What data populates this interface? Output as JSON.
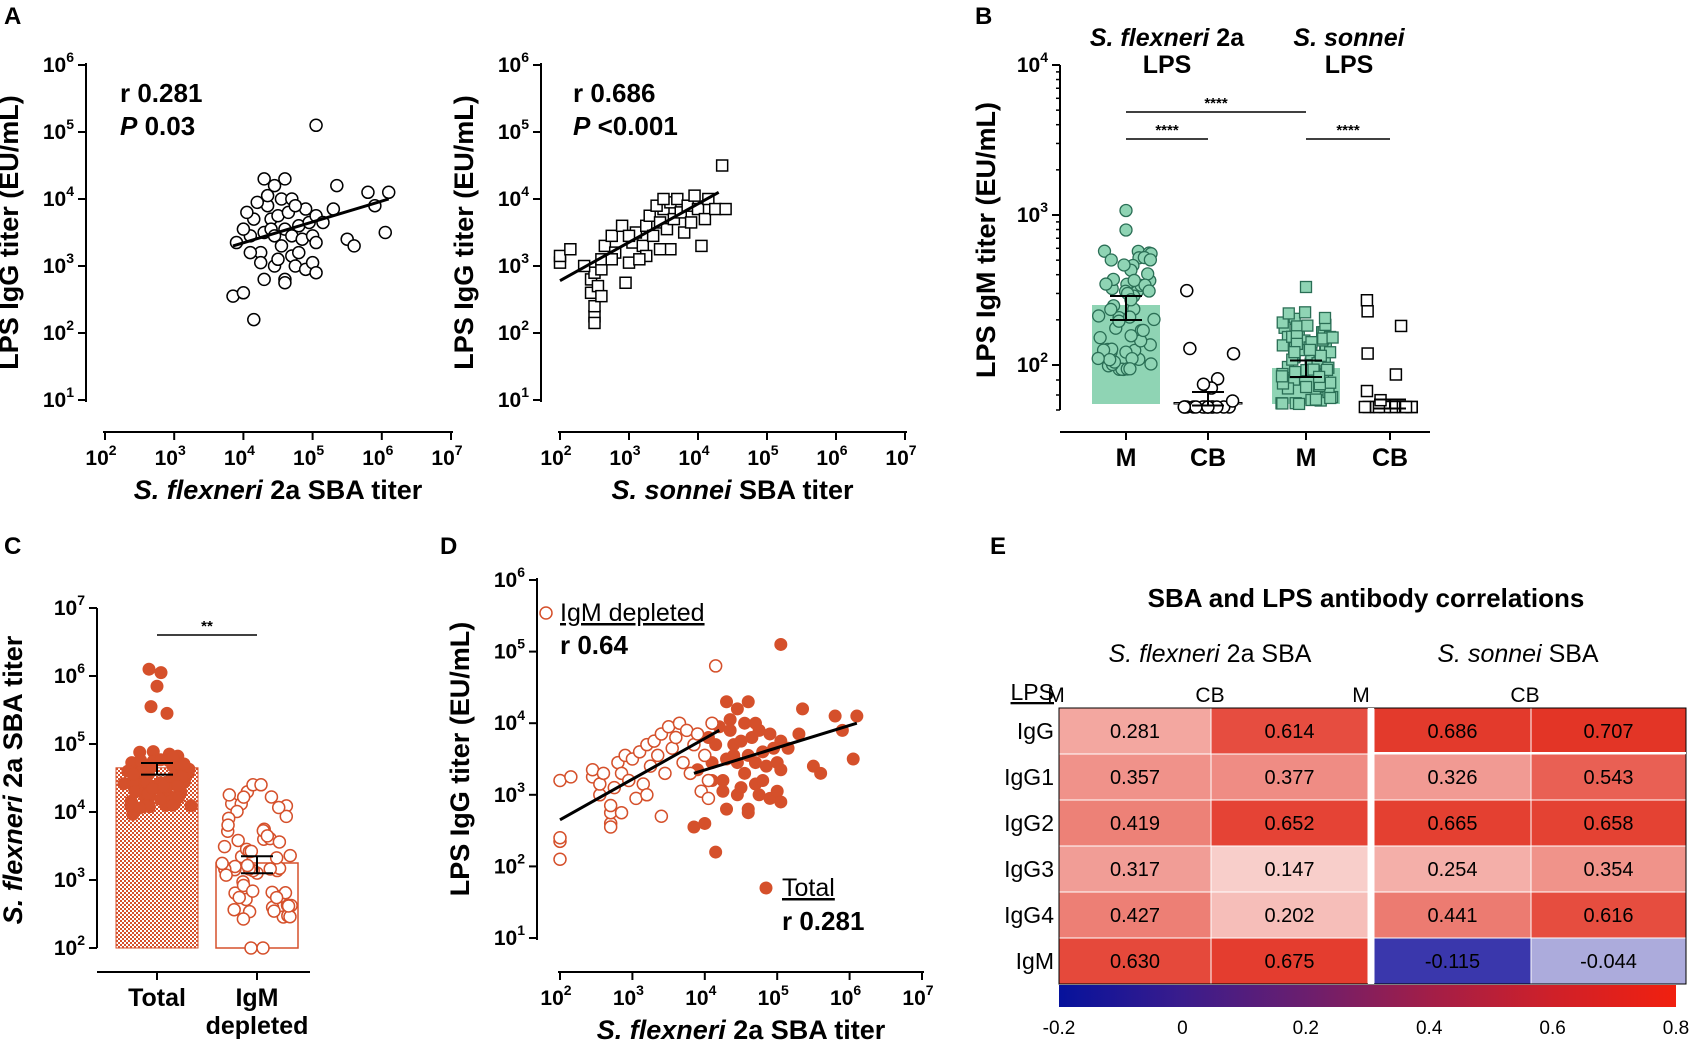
{
  "panels": {
    "a": "A",
    "b": "B",
    "c": "C",
    "d": "D",
    "e": "E"
  },
  "colors": {
    "green": "#8fd4b4",
    "green_edge": "#2a6e55",
    "orange": "#d5502b",
    "neg": "#1e1aa0",
    "pos": "#e12a1a"
  },
  "chart_data": [
    {
      "id": "A1",
      "type": "scatter",
      "xscale": "log",
      "yscale": "log",
      "xlim": [
        2,
        7
      ],
      "ylim": [
        1,
        6
      ],
      "x_ticks": [
        "2",
        "3",
        "4",
        "5",
        "6",
        "7"
      ],
      "y_ticks": [
        "1",
        "2",
        "3",
        "4",
        "5",
        "6"
      ],
      "tick_base": "10",
      "xlabel_italic": "S. flexneri",
      "xlabel_rest": " 2a SBA titer",
      "ylabel": "LPS IgG titer (EU/mL)",
      "r_label": "r 0.281",
      "p_italic": "P",
      "p_value": " 0.03",
      "marker": "open-circle",
      "fit": {
        "log_x": [
          3.85,
          6.1
        ],
        "log_y": [
          3.3,
          4.0
        ]
      },
      "points_log": [
        [
          3.85,
          2.55
        ],
        [
          4.15,
          2.2
        ],
        [
          4.0,
          2.6
        ],
        [
          4.3,
          2.8
        ],
        [
          4.25,
          3.2
        ],
        [
          4.45,
          3.0
        ],
        [
          3.9,
          3.35
        ],
        [
          4.1,
          3.45
        ],
        [
          4.3,
          3.5
        ],
        [
          4.55,
          3.3
        ],
        [
          4.7,
          3.15
        ],
        [
          4.6,
          3.55
        ],
        [
          4.4,
          3.7
        ],
        [
          4.15,
          3.7
        ],
        [
          4.0,
          3.55
        ],
        [
          4.35,
          3.9
        ],
        [
          4.5,
          3.75
        ],
        [
          4.65,
          3.8
        ],
        [
          4.8,
          3.6
        ],
        [
          4.2,
          3.95
        ],
        [
          4.35,
          4.05
        ],
        [
          4.55,
          4.0
        ],
        [
          4.7,
          4.0
        ],
        [
          4.9,
          3.85
        ],
        [
          4.45,
          4.2
        ],
        [
          4.6,
          4.3
        ],
        [
          4.3,
          4.3
        ],
        [
          4.7,
          3.45
        ],
        [
          4.85,
          3.4
        ],
        [
          5.0,
          3.45
        ],
        [
          4.95,
          3.65
        ],
        [
          5.05,
          3.75
        ],
        [
          4.8,
          3.2
        ],
        [
          4.25,
          3.05
        ],
        [
          4.5,
          3.1
        ],
        [
          4.1,
          3.2
        ],
        [
          4.6,
          2.8
        ],
        [
          4.75,
          3.0
        ],
        [
          4.9,
          2.95
        ],
        [
          5.0,
          3.05
        ],
        [
          5.05,
          3.35
        ],
        [
          5.15,
          3.65
        ],
        [
          5.3,
          3.85
        ],
        [
          5.35,
          4.2
        ],
        [
          5.5,
          3.4
        ],
        [
          5.6,
          3.3
        ],
        [
          5.8,
          4.1
        ],
        [
          5.9,
          3.9
        ],
        [
          6.1,
          4.1
        ],
        [
          6.05,
          3.5
        ],
        [
          5.05,
          5.1
        ],
        [
          4.6,
          2.75
        ],
        [
          5.05,
          2.9
        ],
        [
          4.4,
          3.55
        ],
        [
          4.75,
          3.9
        ],
        [
          4.05,
          3.8
        ],
        [
          4.45,
          3.45
        ]
      ]
    },
    {
      "id": "A2",
      "type": "scatter",
      "xscale": "log",
      "yscale": "log",
      "xlim": [
        2,
        7
      ],
      "ylim": [
        1,
        6
      ],
      "x_ticks": [
        "2",
        "3",
        "4",
        "5",
        "6",
        "7"
      ],
      "y_ticks": [
        "1",
        "2",
        "3",
        "4",
        "5",
        "6"
      ],
      "tick_base": "10",
      "xlabel_italic": "S. sonnei",
      "xlabel_rest": " SBA titer",
      "ylabel": "LPS IgG titer (EU/mL)",
      "r_label": "r 0.686",
      "p_italic": "P",
      "p_value": " <0.001",
      "marker": "open-square",
      "fit": {
        "log_x": [
          2.0,
          4.3
        ],
        "log_y": [
          2.78,
          4.1
        ]
      },
      "points_log": [
        [
          2.0,
          3.05
        ],
        [
          2.0,
          3.15
        ],
        [
          2.15,
          3.25
        ],
        [
          2.45,
          2.8
        ],
        [
          2.45,
          2.6
        ],
        [
          2.5,
          2.25
        ],
        [
          2.5,
          2.15
        ],
        [
          2.5,
          2.4
        ],
        [
          2.55,
          2.7
        ],
        [
          2.5,
          2.9
        ],
        [
          2.6,
          2.95
        ],
        [
          2.6,
          3.1
        ],
        [
          2.65,
          3.3
        ],
        [
          2.75,
          3.45
        ],
        [
          2.8,
          3.2
        ],
        [
          2.9,
          3.6
        ],
        [
          2.95,
          2.75
        ],
        [
          3.0,
          3.05
        ],
        [
          3.05,
          3.35
        ],
        [
          3.1,
          3.5
        ],
        [
          3.2,
          3.3
        ],
        [
          3.25,
          3.6
        ],
        [
          3.3,
          3.75
        ],
        [
          3.35,
          3.45
        ],
        [
          3.45,
          3.65
        ],
        [
          3.5,
          3.85
        ],
        [
          3.55,
          3.55
        ],
        [
          3.6,
          3.95
        ],
        [
          3.65,
          3.7
        ],
        [
          3.7,
          4.0
        ],
        [
          3.75,
          3.8
        ],
        [
          3.8,
          3.5
        ],
        [
          3.85,
          3.9
        ],
        [
          3.9,
          3.65
        ],
        [
          3.95,
          4.05
        ],
        [
          4.0,
          3.85
        ],
        [
          4.05,
          3.3
        ],
        [
          4.1,
          3.7
        ],
        [
          4.15,
          4.0
        ],
        [
          4.25,
          3.85
        ],
        [
          3.4,
          3.9
        ],
        [
          3.5,
          4.0
        ],
        [
          3.25,
          3.15
        ],
        [
          3.15,
          3.1
        ],
        [
          3.6,
          3.25
        ],
        [
          4.35,
          4.5
        ],
        [
          4.4,
          3.85
        ],
        [
          2.35,
          3.0
        ],
        [
          2.6,
          2.55
        ],
        [
          2.75,
          3.1
        ],
        [
          3.0,
          3.45
        ],
        [
          3.45,
          3.25
        ]
      ]
    },
    {
      "id": "B",
      "type": "bar+scatter",
      "yscale": "log",
      "ylim": [
        1.7,
        4.0
      ],
      "y_ticks": [
        "2",
        "3",
        "4"
      ],
      "tick_base": "10",
      "ylabel": "LPS IgM titer (EU/mL)",
      "groups": [
        {
          "title_italic": "S. flexneri",
          "title_rest": " 2a",
          "title_line2": "LPS"
        },
        {
          "title_italic": "S. sonnei",
          "title_rest": "",
          "title_line2": "LPS"
        }
      ],
      "categories": [
        "M",
        "CB",
        "M",
        "CB"
      ],
      "bar_log_values": [
        2.4,
        1.75,
        1.98,
        1.72
      ],
      "error_log": [
        [
          2.3,
          2.46
        ],
        [
          1.73,
          1.82
        ],
        [
          1.92,
          2.03
        ],
        [
          1.71,
          1.77
        ]
      ],
      "markers": [
        "green-circle",
        "open-circle",
        "green-square",
        "open-square"
      ],
      "significance": [
        {
          "label": "****",
          "from": 0,
          "to": 2,
          "level": 1
        },
        {
          "label": "****",
          "from": 0,
          "to": 1,
          "level": 0
        },
        {
          "label": "****",
          "from": 2,
          "to": 3,
          "level": 0
        }
      ]
    },
    {
      "id": "C",
      "type": "bar+scatter",
      "yscale": "log",
      "ylim": [
        2,
        7
      ],
      "y_ticks": [
        "2",
        "3",
        "4",
        "5",
        "6",
        "7"
      ],
      "tick_base": "10",
      "ylabel_italic": "S. flexneri",
      "ylabel_rest": " 2a SBA titer",
      "categories": [
        "Total",
        "IgM"
      ],
      "category2_line2": "depleted",
      "bar_log_values": [
        4.65,
        3.25
      ],
      "error_log": [
        [
          4.55,
          4.72
        ],
        [
          3.1,
          3.35
        ]
      ],
      "significance": [
        {
          "label": "**",
          "from": 0,
          "to": 1
        }
      ]
    },
    {
      "id": "D",
      "type": "scatter",
      "xscale": "log",
      "yscale": "log",
      "xlim": [
        2,
        7
      ],
      "ylim": [
        1,
        6
      ],
      "x_ticks": [
        "2",
        "3",
        "4",
        "5",
        "6",
        "7"
      ],
      "y_ticks": [
        "1",
        "2",
        "3",
        "4",
        "5",
        "6"
      ],
      "tick_base": "10",
      "xlabel_italic": "S. flexneri",
      "xlabel_rest": " 2a SBA titer",
      "ylabel": "LPS IgG titer (EU/mL)",
      "series": [
        {
          "name": "IgM depleted",
          "r": "r 0.64",
          "marker": "open-circle",
          "fit": {
            "log_x": [
              2.0,
              4.2
            ],
            "log_y": [
              2.65,
              3.9
            ]
          },
          "points_log": [
            [
              2.0,
              2.1
            ],
            [
              2.0,
              2.35
            ],
            [
              2.0,
              2.4
            ],
            [
              2.0,
              3.2
            ],
            [
              2.15,
              3.25
            ],
            [
              2.45,
              3.25
            ],
            [
              2.45,
              3.35
            ],
            [
              2.55,
              3.0
            ],
            [
              2.55,
              3.15
            ],
            [
              2.6,
              3.3
            ],
            [
              2.7,
              2.6
            ],
            [
              2.7,
              2.55
            ],
            [
              2.7,
              2.75
            ],
            [
              2.7,
              2.85
            ],
            [
              2.75,
              3.1
            ],
            [
              2.8,
              3.45
            ],
            [
              2.85,
              3.3
            ],
            [
              2.9,
              3.55
            ],
            [
              2.95,
              3.2
            ],
            [
              3.0,
              3.5
            ],
            [
              3.05,
              2.95
            ],
            [
              3.1,
              3.6
            ],
            [
              3.15,
              3.15
            ],
            [
              3.2,
              3.7
            ],
            [
              3.25,
              3.4
            ],
            [
              3.3,
              3.75
            ],
            [
              3.35,
              3.55
            ],
            [
              3.4,
              3.85
            ],
            [
              3.45,
              3.3
            ],
            [
              3.5,
              3.95
            ],
            [
              3.55,
              3.65
            ],
            [
              3.6,
              3.8
            ],
            [
              3.65,
              4.0
            ],
            [
              3.7,
              3.45
            ],
            [
              3.75,
              3.9
            ],
            [
              3.8,
              3.3
            ],
            [
              3.85,
              3.7
            ],
            [
              3.9,
              3.85
            ],
            [
              4.0,
              3.55
            ],
            [
              4.05,
              3.2
            ],
            [
              4.1,
              4.0
            ],
            [
              4.15,
              4.8
            ],
            [
              3.95,
              3.05
            ],
            [
              3.4,
              2.7
            ],
            [
              2.85,
              2.75
            ],
            [
              3.2,
              3.0
            ],
            [
              4.05,
              2.95
            ]
          ]
        },
        {
          "name": "Total",
          "r": "r 0.281",
          "marker": "filled-circle",
          "fit": {
            "log_x": [
              3.85,
              6.1
            ],
            "log_y": [
              3.3,
              4.0
            ]
          },
          "points_log": [
            [
              3.85,
              2.55
            ],
            [
              4.15,
              2.2
            ],
            [
              4.0,
              2.6
            ],
            [
              4.3,
              2.8
            ],
            [
              4.25,
              3.2
            ],
            [
              4.45,
              3.0
            ],
            [
              3.9,
              3.35
            ],
            [
              4.1,
              3.45
            ],
            [
              4.3,
              3.5
            ],
            [
              4.55,
              3.3
            ],
            [
              4.7,
              3.15
            ],
            [
              4.6,
              3.55
            ],
            [
              4.4,
              3.7
            ],
            [
              4.15,
              3.7
            ],
            [
              4.0,
              3.55
            ],
            [
              4.35,
              3.9
            ],
            [
              4.5,
              3.75
            ],
            [
              4.65,
              3.8
            ],
            [
              4.8,
              3.6
            ],
            [
              4.2,
              3.95
            ],
            [
              4.35,
              4.05
            ],
            [
              4.55,
              4.0
            ],
            [
              4.7,
              4.0
            ],
            [
              4.9,
              3.85
            ],
            [
              4.45,
              4.2
            ],
            [
              4.6,
              4.3
            ],
            [
              4.3,
              4.3
            ],
            [
              4.7,
              3.45
            ],
            [
              4.85,
              3.4
            ],
            [
              5.0,
              3.45
            ],
            [
              4.95,
              3.65
            ],
            [
              5.05,
              3.75
            ],
            [
              4.8,
              3.2
            ],
            [
              4.25,
              3.05
            ],
            [
              4.5,
              3.1
            ],
            [
              4.1,
              3.2
            ],
            [
              4.6,
              2.8
            ],
            [
              4.75,
              3.0
            ],
            [
              4.9,
              2.95
            ],
            [
              5.0,
              3.05
            ],
            [
              5.05,
              3.35
            ],
            [
              5.15,
              3.65
            ],
            [
              5.3,
              3.85
            ],
            [
              5.35,
              4.2
            ],
            [
              5.5,
              3.4
            ],
            [
              5.6,
              3.3
            ],
            [
              5.8,
              4.1
            ],
            [
              5.9,
              3.9
            ],
            [
              6.1,
              4.1
            ],
            [
              6.05,
              3.5
            ],
            [
              5.05,
              5.1
            ],
            [
              4.6,
              2.75
            ],
            [
              5.05,
              2.9
            ],
            [
              4.4,
              3.55
            ],
            [
              4.75,
              3.9
            ],
            [
              4.05,
              3.8
            ],
            [
              4.45,
              3.45
            ]
          ]
        }
      ]
    },
    {
      "id": "E",
      "type": "heatmap",
      "title": "SBA and LPS antibody correlations",
      "col_groups": [
        {
          "italic": "S. flexneri",
          "rest": " 2a SBA"
        },
        {
          "italic": "S. sonnei",
          "rest": " SBA"
        }
      ],
      "row_header": "LPS",
      "columns": [
        "M",
        "CB",
        "M",
        "CB"
      ],
      "rows": [
        "IgG",
        "IgG1",
        "IgG2",
        "IgG3",
        "IgG4",
        "IgM"
      ],
      "values": [
        [
          "0.281",
          "0.614",
          "0.686",
          "0.707"
        ],
        [
          "0.357",
          "0.377",
          "0.326",
          "0.543"
        ],
        [
          "0.419",
          "0.652",
          "0.665",
          "0.658"
        ],
        [
          "0.317",
          "0.147",
          "0.254",
          "0.354"
        ],
        [
          "0.427",
          "0.202",
          "0.441",
          "0.616"
        ],
        [
          "0.630",
          "0.675",
          "-0.115",
          "-0.044"
        ]
      ],
      "scale_ticks": [
        "-0.2",
        "0",
        "0.2",
        "0.4",
        "0.6",
        "0.8"
      ],
      "scale_range": [
        -0.2,
        0.8
      ]
    }
  ]
}
